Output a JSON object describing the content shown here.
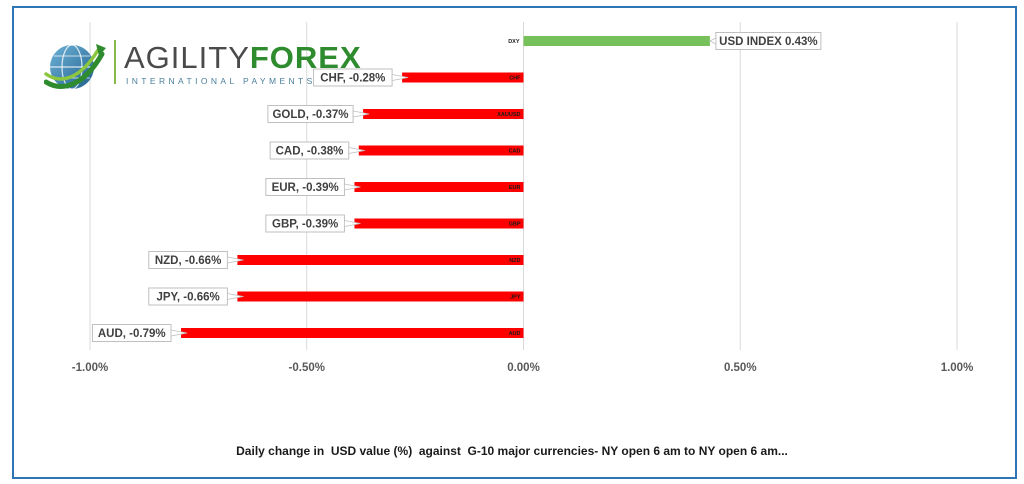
{
  "colors": {
    "positive": "#77c15a",
    "negative": "#ff0000",
    "frame": "#2e75b6",
    "axis_text": "#595959",
    "grid": "#d9d9d9",
    "brand_green": "#2e8b2e"
  },
  "logo": {
    "wordmark_part1": "AGILITY",
    "wordmark_part2": "FOREX",
    "tagline": "INTERNATIONAL PAYMENTS",
    "icon": "globe-swoosh-logo-icon"
  },
  "caption": "Daily change in  USD value (%)  against  G-10 major currencies- NY open 6 am to NY open 6 am...",
  "chart_data": {
    "type": "bar",
    "orientation": "horizontal",
    "categories": [
      "DXY",
      "CHF",
      "XAUUSD",
      "CAD",
      "EUR",
      "GBP",
      "NZD",
      "JPY",
      "AUD"
    ],
    "values": [
      0.43,
      -0.28,
      -0.37,
      -0.38,
      -0.39,
      -0.39,
      -0.66,
      -0.66,
      -0.79
    ],
    "data_labels": [
      "USD INDEX 0.43%",
      "CHF, -0.28%",
      "GOLD, -0.37%",
      "CAD, -0.38%",
      "EUR, -0.39%",
      "GBP, -0.39%",
      "NZD, -0.66%",
      "JPY, -0.66%",
      "AUD, -0.79%"
    ],
    "xlim": [
      -1.0,
      1.0
    ],
    "xticks": [
      -1.0,
      -0.5,
      0.0,
      0.5,
      1.0
    ],
    "xtick_labels": [
      "-1.00%",
      "-0.50%",
      "0.00%",
      "0.50%",
      "1.00%"
    ],
    "grid": "vertical",
    "legend": "none"
  }
}
